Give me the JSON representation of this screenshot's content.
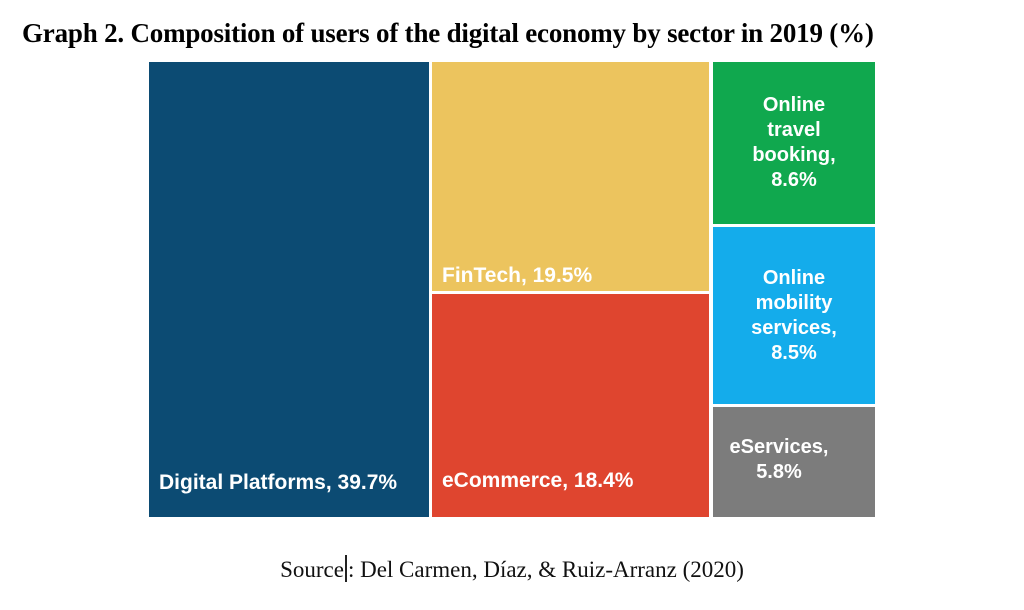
{
  "chart_data": {
    "type": "treemap",
    "title": "Graph 2. Composition of users of the digital economy by sector in 2019 (%)",
    "categories": [
      "Digital Platforms",
      "FinTech",
      "eCommerce",
      "Online travel booking",
      "Online mobility services",
      "eServices"
    ],
    "values": [
      39.7,
      19.5,
      18.4,
      8.6,
      8.5,
      5.8
    ],
    "unit": "%",
    "colors": [
      "#0C4B73",
      "#ECC45E",
      "#DF452F",
      "#10A84E",
      "#14ACEB",
      "#7C7C7C"
    ],
    "labels": [
      "Digital Platforms, 39.7%",
      "FinTech, 19.5%",
      "eCommerce, 18.4%",
      "Online\ntravel\nbooking,\n8.6%",
      "Online\nmobility\nservices,\n8.5%",
      "eServices,\n5.8%"
    ],
    "label_text_color": "#ffffff",
    "legend": "none",
    "layout": "tiles ordered largest-left, right column stacked top-to-bottom"
  },
  "source": {
    "prefix": "Source",
    "suffix": ": Del Carmen, Díaz, & Ruiz-Arranz (2020)"
  }
}
